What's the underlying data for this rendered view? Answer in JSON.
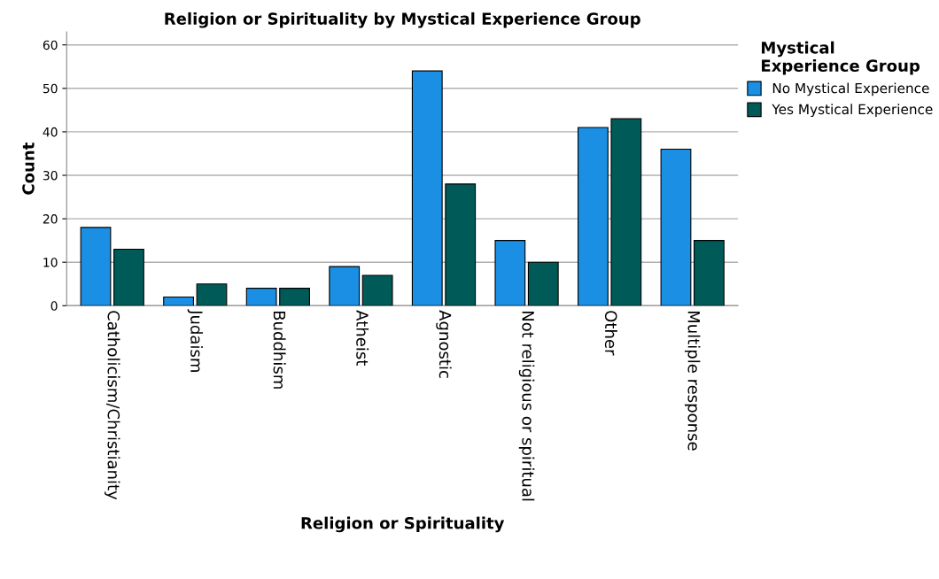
{
  "chart_data": {
    "type": "bar",
    "title": "Religion or Spirituality by Mystical Experience Group",
    "xlabel": "Religion or Spirituality",
    "ylabel": "Count",
    "legend_title": "Mystical\nExperience Group",
    "categories": [
      "Catholicism/Christianity",
      "Judaism",
      "Buddhism",
      "Atheist",
      "Agnostic",
      "Not religious or spiritual",
      "Other",
      "Multiple response"
    ],
    "series": [
      {
        "name": "No Mystical Experience",
        "color": "#1a8fe3",
        "values": [
          18,
          2,
          4,
          9,
          54,
          15,
          41,
          36
        ]
      },
      {
        "name": "Yes Mystical Experience",
        "color": "#005a58",
        "values": [
          13,
          5,
          4,
          7,
          28,
          10,
          43,
          15
        ]
      }
    ],
    "ylim": [
      0,
      63
    ],
    "yticks": [
      0,
      10,
      20,
      30,
      40,
      50,
      60
    ],
    "grid": "y",
    "legend": "right"
  }
}
